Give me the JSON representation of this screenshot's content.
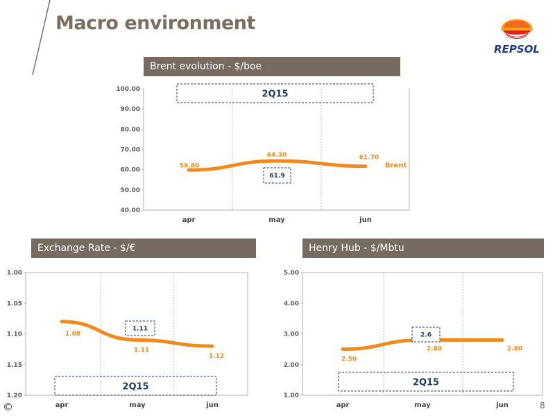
{
  "page": {
    "title": "Macro environment",
    "page_number": "8",
    "copyright": "©"
  },
  "logo": {
    "text": "REPSOL"
  },
  "colors": {
    "line": "#f08a1c",
    "header_bg": "#766b60",
    "box": "#1f3a5f",
    "grid": "#bdbdbd"
  },
  "chart_data": [
    {
      "type": "line",
      "title": "Brent evolution - $/boe",
      "categories": [
        "apr",
        "may",
        "jun"
      ],
      "series": [
        {
          "name": "Brent",
          "values": [
            59.8,
            64.3,
            61.7
          ],
          "labels": [
            "59.80",
            "64.30",
            "61.70"
          ]
        }
      ],
      "yticks": [
        "100.00",
        "90.00",
        "80.00",
        "70.00",
        "60.00",
        "50.00",
        "40.00"
      ],
      "ylim": [
        40,
        100
      ],
      "annotations": {
        "period": "2Q15",
        "average": "61.9"
      },
      "grid": true
    },
    {
      "type": "line",
      "title": "Exchange Rate - $/€",
      "categories": [
        "apr",
        "may",
        "jun"
      ],
      "series": [
        {
          "name": "",
          "values": [
            1.08,
            1.11,
            1.12
          ],
          "labels": [
            "1.08",
            "1.11",
            "1.12"
          ]
        }
      ],
      "yticks": [
        "1.00",
        "1.05",
        "1.10",
        "1.15",
        "1.20"
      ],
      "ylim": [
        1.0,
        1.2
      ],
      "inverted_axis": true,
      "annotations": {
        "period": "2Q15",
        "average": "1.11"
      },
      "grid": true
    },
    {
      "type": "line",
      "title": "Henry Hub - $/Mbtu",
      "categories": [
        "apr",
        "may",
        "jun"
      ],
      "series": [
        {
          "name": "",
          "values": [
            2.5,
            2.8,
            2.8
          ],
          "labels": [
            "2.50",
            "2.80",
            "2.80"
          ]
        }
      ],
      "yticks": [
        "5.00",
        "4.00",
        "3.00",
        "2.00",
        "1.00"
      ],
      "ylim": [
        1,
        5
      ],
      "annotations": {
        "period": "2Q15",
        "average": "2.6"
      },
      "grid": true
    }
  ]
}
